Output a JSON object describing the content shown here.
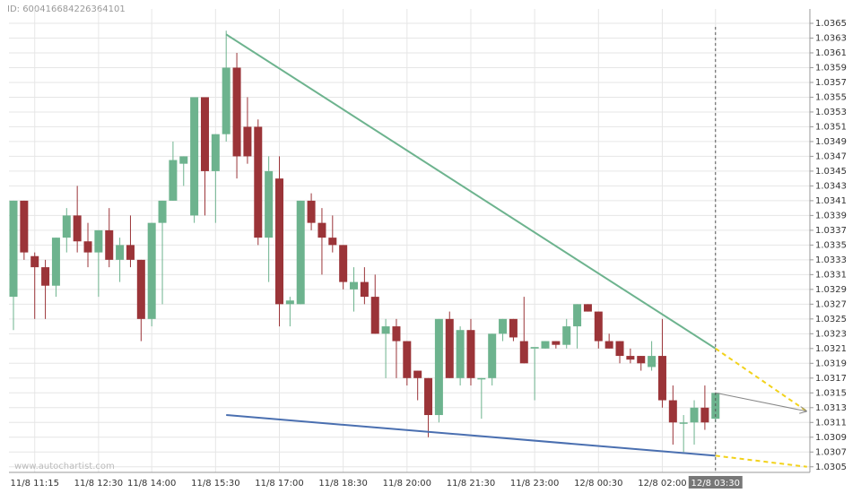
{
  "chart_data": {
    "type": "candlestick",
    "id_label": "ID: 600416684226364101",
    "watermark": "www.autochartist.com",
    "up_color": "#6db38e",
    "down_color": "#9b3438",
    "grid": true,
    "categories": [
      null,
      null,
      "11/8 11:15",
      null,
      null,
      null,
      null,
      null,
      "11/8 12:30",
      null,
      null,
      null,
      null,
      "11/8 14:00",
      null,
      null,
      null,
      null,
      null,
      "11/8 15:30",
      null,
      null,
      null,
      null,
      null,
      "11/8 17:00",
      null,
      null,
      null,
      null,
      null,
      "11/8 18:30",
      null,
      null,
      null,
      null,
      null,
      "11/8 20:00",
      null,
      null,
      null,
      null,
      null,
      "11/8 21:30",
      null,
      null,
      null,
      null,
      null,
      "11/8 23:00",
      null,
      null,
      null,
      null,
      null,
      "12/8 00:30",
      null,
      null,
      null,
      null,
      null,
      "12/8 02:00",
      null,
      null,
      null,
      null,
      "12/8 03:30"
    ],
    "open": [
      1.0328,
      1.0341,
      1.03335,
      1.0332,
      1.03295,
      1.0336,
      1.0339,
      1.03355,
      1.0334,
      1.0337,
      1.0333,
      1.0335,
      1.0333,
      1.0325,
      1.0338,
      1.0341,
      1.0346,
      1.0339,
      1.0355,
      1.0345,
      1.035,
      1.0359,
      1.0351,
      1.0351,
      1.0336,
      1.0344,
      1.0327,
      1.0327,
      1.0341,
      1.0338,
      1.0336,
      1.0335,
      1.0329,
      1.033,
      1.0328,
      1.0323,
      1.0324,
      1.0322,
      1.0318,
      1.0317,
      1.0312,
      1.0325,
      1.0317,
      1.03235,
      1.0317,
      1.0317,
      1.0323,
      1.0325,
      1.0322,
      1.0321,
      1.0321,
      1.0322,
      1.03215,
      1.0324,
      1.0327,
      1.0326,
      1.0322,
      1.0322,
      1.032,
      1.032,
      1.03185,
      1.032,
      1.0314,
      1.0311,
      1.0311,
      1.0313,
      1.03115
    ],
    "high": [
      1.0341,
      1.0341,
      1.0334,
      1.0333,
      1.0336,
      1.034,
      1.0343,
      1.0338,
      1.0337,
      1.034,
      1.0336,
      1.0339,
      1.0333,
      1.0338,
      1.0341,
      1.0349,
      1.0347,
      1.0355,
      1.0355,
      1.035,
      1.0364,
      1.0361,
      1.0355,
      1.0352,
      1.0347,
      1.0347,
      1.0328,
      1.0341,
      1.0342,
      1.034,
      1.0339,
      1.0335,
      1.0332,
      1.0332,
      1.0331,
      1.0325,
      1.0325,
      1.0322,
      1.0318,
      1.0317,
      1.0325,
      1.0326,
      1.0324,
      1.0325,
      1.0317,
      1.0323,
      1.0325,
      1.0325,
      1.0328,
      1.0321,
      1.0322,
      1.0322,
      1.0325,
      1.0327,
      1.0327,
      1.0326,
      1.0323,
      1.0322,
      1.0321,
      1.032,
      1.0322,
      1.0325,
      1.0316,
      1.0312,
      1.0314,
      1.0316,
      1.0315
    ],
    "low": [
      1.03235,
      1.0333,
      1.0325,
      1.0325,
      1.0328,
      1.0334,
      1.0334,
      1.0332,
      1.0328,
      1.0332,
      1.033,
      1.0332,
      1.0322,
      1.0324,
      1.0327,
      1.0341,
      1.0343,
      1.0338,
      1.0339,
      1.0338,
      1.0349,
      1.0344,
      1.0346,
      1.0335,
      1.033,
      1.0324,
      1.0324,
      1.0327,
      1.0337,
      1.0331,
      1.0334,
      1.0329,
      1.0326,
      1.0327,
      1.0323,
      1.0317,
      1.0317,
      1.0316,
      1.0314,
      1.0309,
      1.0311,
      1.0317,
      1.0316,
      1.0316,
      1.03115,
      1.0316,
      1.0322,
      1.0322,
      1.0319,
      1.0314,
      1.0321,
      1.0321,
      1.0321,
      1.0321,
      1.0326,
      1.0321,
      1.0321,
      1.0319,
      1.0319,
      1.0318,
      1.0318,
      1.0313,
      1.0308,
      1.0307,
      1.0308,
      1.031,
      1.0311
    ],
    "close": [
      1.0341,
      1.0334,
      1.0332,
      1.03295,
      1.0336,
      1.0339,
      1.03355,
      1.0334,
      1.0337,
      1.0333,
      1.0335,
      1.0333,
      1.0325,
      1.0338,
      1.0341,
      1.03465,
      1.0347,
      1.0355,
      1.0345,
      1.035,
      1.0359,
      1.0347,
      1.0347,
      1.0336,
      1.0345,
      1.0327,
      1.03275,
      1.0341,
      1.0338,
      1.0336,
      1.0335,
      1.033,
      1.033,
      1.0328,
      1.0323,
      1.0324,
      1.0322,
      1.0317,
      1.0317,
      1.0312,
      1.0325,
      1.0317,
      1.03235,
      1.0317,
      1.0317,
      1.0323,
      1.0325,
      1.03225,
      1.0319,
      1.03212,
      1.0322,
      1.03215,
      1.0324,
      1.0327,
      1.0326,
      1.0322,
      1.0321,
      1.032,
      1.03195,
      1.0319,
      1.032,
      1.0314,
      1.0311,
      1.0311,
      1.0313,
      1.0311,
      1.0315
    ],
    "lines": [
      {
        "color": "#6db38e",
        "dash": false,
        "x": [
          20,
          66
        ],
        "y": [
          1.03635,
          1.0321
        ]
      },
      {
        "color": "#4a6fb0",
        "dash": false,
        "x": [
          20,
          66
        ],
        "y": [
          1.0312,
          1.03065
        ]
      },
      {
        "color": "#f2d21b",
        "dash": true,
        "x": [
          66,
          74.6
        ],
        "y": [
          1.0321,
          1.03125
        ]
      },
      {
        "color": "#f2d21b",
        "dash": true,
        "x": [
          66,
          74.6
        ],
        "y": [
          1.03065,
          1.0305
        ]
      },
      {
        "color": "#888888",
        "dash": false,
        "arrow": true,
        "x": [
          66,
          74.6
        ],
        "y": [
          1.0315,
          1.03125
        ]
      }
    ],
    "ylim": [
      1.0304,
      1.0367
    ],
    "yticks": [
      1.0305,
      1.0307,
      1.0309,
      1.0311,
      1.0313,
      1.0315,
      1.0317,
      1.0319,
      1.0321,
      1.0323,
      1.0325,
      1.0327,
      1.0329,
      1.0331,
      1.0333,
      1.0335,
      1.0337,
      1.0339,
      1.0341,
      1.0343,
      1.0345,
      1.0347,
      1.0349,
      1.0351,
      1.0353,
      1.0355,
      1.0357,
      1.0359,
      1.0361,
      1.0363,
      1.0365
    ]
  }
}
